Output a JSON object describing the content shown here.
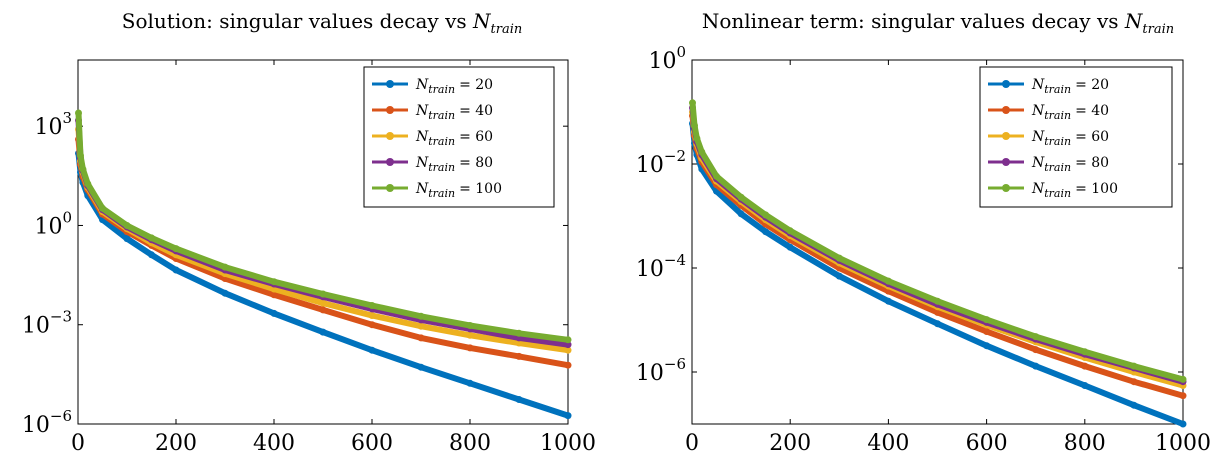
{
  "chart_data": [
    {
      "type": "line",
      "title": "Solution: singular values decay vs N_train",
      "title_prefix": "Solution: singular values decay vs ",
      "title_symbol": "N",
      "title_subscript": "train",
      "xlabel": "",
      "ylabel": "",
      "x_scale": "linear",
      "y_scale": "log",
      "xlim": [
        0,
        1000
      ],
      "ylim": [
        1e-06,
        100000.0
      ],
      "x_ticks": [
        0,
        200,
        400,
        600,
        800,
        1000
      ],
      "x_tick_labels": [
        "0",
        "200",
        "400",
        "600",
        "800",
        "1000"
      ],
      "y_ticks": [
        1e-06,
        0.001,
        1,
        1000
      ],
      "y_tick_labels": [
        {
          "base": "10",
          "exp": "−6"
        },
        {
          "base": "10",
          "exp": "−3"
        },
        {
          "base": "10",
          "exp": "0"
        },
        {
          "base": "10",
          "exp": "3"
        }
      ],
      "legend_position": "top-right",
      "grid": false,
      "series": [
        {
          "name": "N_train = 20",
          "label_symbol": "N",
          "label_subscript": "train",
          "label_value": "= 20",
          "color": "#0072bd",
          "x": [
            1,
            5,
            10,
            20,
            50,
            100,
            150,
            200,
            300,
            400,
            500,
            600,
            700,
            800,
            900,
            1000
          ],
          "y": [
            150,
            40,
            20,
            8,
            1.5,
            0.4,
            0.13,
            0.045,
            0.009,
            0.0022,
            0.0006,
            0.00017,
            5.2e-05,
            1.7e-05,
            5.5e-06,
            1.8e-06
          ]
        },
        {
          "name": "N_train = 40",
          "label_symbol": "N",
          "label_subscript": "train",
          "label_value": "= 40",
          "color": "#d95319",
          "x": [
            1,
            5,
            10,
            20,
            50,
            100,
            150,
            200,
            300,
            400,
            500,
            600,
            700,
            800,
            900,
            1000
          ],
          "y": [
            400,
            70,
            30,
            12,
            2.2,
            0.65,
            0.25,
            0.1,
            0.025,
            0.008,
            0.0028,
            0.001,
            0.0004,
            0.0002,
            0.00011,
            6e-05
          ]
        },
        {
          "name": "N_train = 60",
          "label_symbol": "N",
          "label_subscript": "train",
          "label_value": "= 60",
          "color": "#edb120",
          "x": [
            1,
            5,
            10,
            20,
            50,
            100,
            150,
            200,
            300,
            400,
            500,
            600,
            700,
            800,
            900,
            1000
          ],
          "y": [
            800,
            90,
            40,
            14,
            2.6,
            0.8,
            0.3,
            0.13,
            0.035,
            0.012,
            0.0045,
            0.0019,
            0.0009,
            0.00048,
            0.00028,
            0.00017
          ]
        },
        {
          "name": "N_train = 80",
          "label_symbol": "N",
          "label_subscript": "train",
          "label_value": "= 80",
          "color": "#7e2f8e",
          "x": [
            1,
            5,
            10,
            20,
            50,
            100,
            150,
            200,
            300,
            400,
            500,
            600,
            700,
            800,
            900,
            1000
          ],
          "y": [
            1500,
            110,
            45,
            16,
            3,
            0.9,
            0.37,
            0.17,
            0.045,
            0.017,
            0.007,
            0.003,
            0.0014,
            0.00075,
            0.0004,
            0.00025
          ]
        },
        {
          "name": "N_train = 100",
          "label_symbol": "N",
          "label_subscript": "train",
          "label_value": "= 100",
          "color": "#77ac30",
          "x": [
            1,
            5,
            10,
            20,
            50,
            100,
            150,
            200,
            300,
            400,
            500,
            600,
            700,
            800,
            900,
            1000
          ],
          "y": [
            2500,
            130,
            50,
            18,
            3.3,
            1,
            0.42,
            0.2,
            0.055,
            0.02,
            0.0085,
            0.0038,
            0.0018,
            0.00095,
            0.00055,
            0.00035
          ]
        }
      ]
    },
    {
      "type": "line",
      "title": "Nonlinear term: singular values decay vs N_train",
      "title_prefix": "Nonlinear term: singular values decay vs ",
      "title_symbol": "N",
      "title_subscript": "train",
      "xlabel": "",
      "ylabel": "",
      "x_scale": "linear",
      "y_scale": "log",
      "xlim": [
        0,
        1000
      ],
      "ylim": [
        1e-07,
        1
      ],
      "x_ticks": [
        0,
        200,
        400,
        600,
        800,
        1000
      ],
      "x_tick_labels": [
        "0",
        "200",
        "400",
        "600",
        "800",
        "1000"
      ],
      "y_ticks": [
        1e-06,
        0.0001,
        0.01,
        1
      ],
      "y_tick_labels": [
        {
          "base": "10",
          "exp": "−6"
        },
        {
          "base": "10",
          "exp": "−4"
        },
        {
          "base": "10",
          "exp": "−2"
        },
        {
          "base": "10",
          "exp": "0"
        }
      ],
      "legend_position": "top-right",
      "grid": false,
      "series": [
        {
          "name": "N_train = 20",
          "label_symbol": "N",
          "label_subscript": "train",
          "label_value": "= 20",
          "color": "#0072bd",
          "x": [
            1,
            5,
            10,
            20,
            50,
            100,
            150,
            200,
            300,
            400,
            500,
            600,
            700,
            800,
            900,
            1000
          ],
          "y": [
            0.06,
            0.025,
            0.015,
            0.008,
            0.003,
            0.0011,
            0.0005,
            0.00025,
            7e-05,
            2.3e-05,
            8.5e-06,
            3.2e-06,
            1.3e-06,
            5.5e-07,
            2.3e-07,
            1e-07
          ]
        },
        {
          "name": "N_train = 40",
          "label_symbol": "N",
          "label_subscript": "train",
          "label_value": "= 40",
          "color": "#d95319",
          "x": [
            1,
            5,
            10,
            20,
            50,
            100,
            150,
            200,
            300,
            400,
            500,
            600,
            700,
            800,
            900,
            1000
          ],
          "y": [
            0.085,
            0.035,
            0.02,
            0.011,
            0.004,
            0.0016,
            0.0007,
            0.00035,
            0.0001,
            3.6e-05,
            1.4e-05,
            6e-06,
            2.7e-06,
            1.3e-06,
            6.5e-07,
            3.5e-07
          ]
        },
        {
          "name": "N_train = 60",
          "label_symbol": "N",
          "label_subscript": "train",
          "label_value": "= 60",
          "color": "#edb120",
          "x": [
            1,
            5,
            10,
            20,
            50,
            100,
            150,
            200,
            300,
            400,
            500,
            600,
            700,
            800,
            900,
            1000
          ],
          "y": [
            0.1,
            0.042,
            0.024,
            0.013,
            0.0047,
            0.0019,
            0.00085,
            0.00042,
            0.000125,
            4.5e-05,
            1.8e-05,
            8e-06,
            3.8e-06,
            1.9e-06,
            1e-06,
            5.5e-07
          ]
        },
        {
          "name": "N_train = 80",
          "label_symbol": "N",
          "label_subscript": "train",
          "label_value": "= 80",
          "color": "#7e2f8e",
          "x": [
            1,
            5,
            10,
            20,
            50,
            100,
            150,
            200,
            300,
            400,
            500,
            600,
            700,
            800,
            900,
            1000
          ],
          "y": [
            0.12,
            0.048,
            0.027,
            0.015,
            0.0052,
            0.0021,
            0.00095,
            0.00047,
            0.00014,
            5e-05,
            2e-05,
            9e-06,
            4.3e-06,
            2.2e-06,
            1.2e-06,
            6.5e-07
          ]
        },
        {
          "name": "N_train = 100",
          "label_symbol": "N",
          "label_subscript": "train",
          "label_value": "= 100",
          "color": "#77ac30",
          "x": [
            1,
            5,
            10,
            20,
            50,
            100,
            150,
            200,
            300,
            400,
            500,
            600,
            700,
            800,
            900,
            1000
          ],
          "y": [
            0.15,
            0.055,
            0.031,
            0.017,
            0.0058,
            0.0023,
            0.00105,
            0.00052,
            0.000155,
            5.6e-05,
            2.3e-05,
            1.02e-05,
            4.8e-06,
            2.45e-06,
            1.3e-06,
            7.2e-07
          ]
        }
      ]
    }
  ]
}
